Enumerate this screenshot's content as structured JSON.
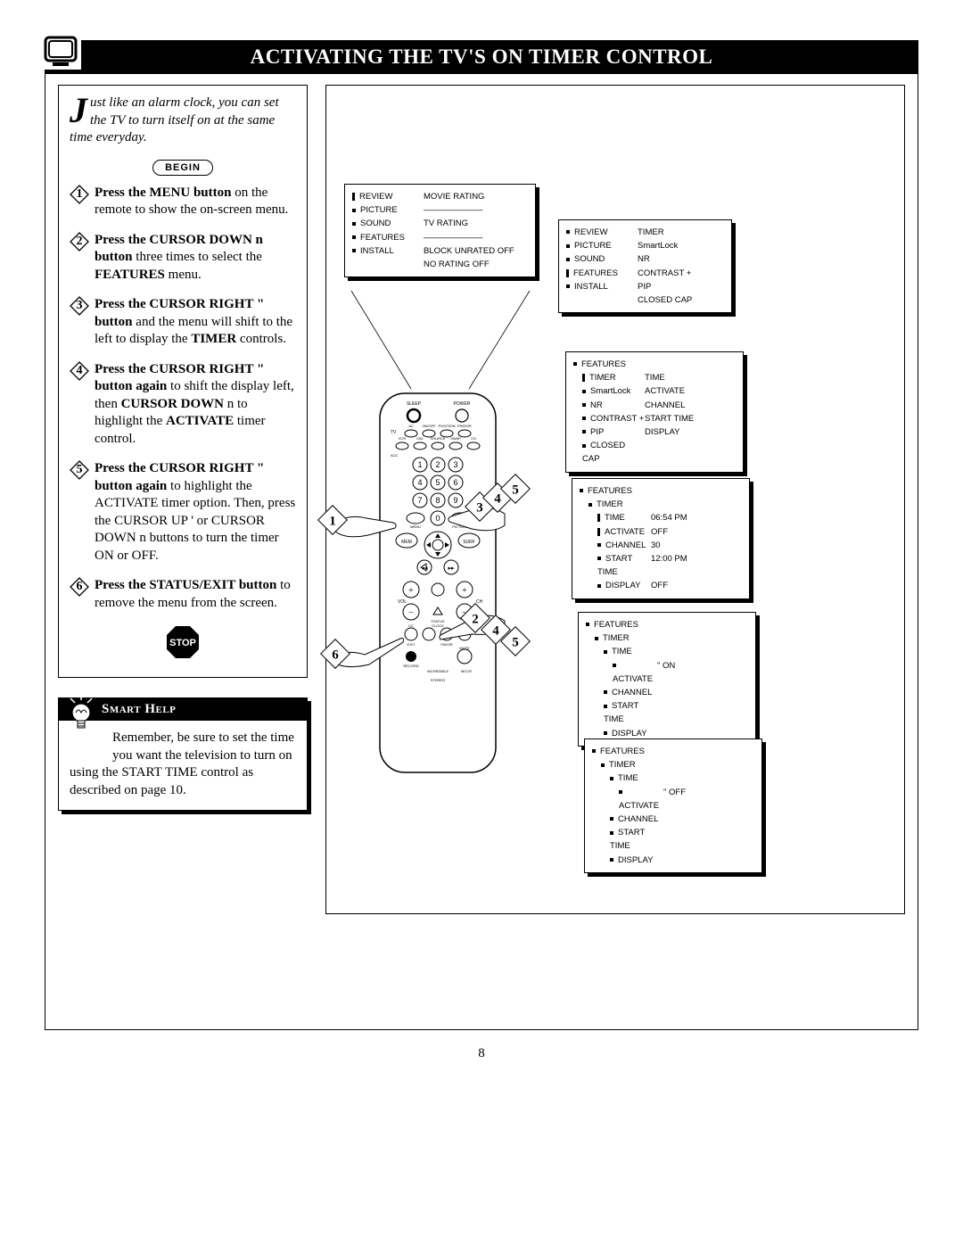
{
  "title": "ACTIVATING THE TV'S ON TIMER CONTROL",
  "page_number": "8",
  "intro_dropcap": "J",
  "intro_text": "ust like an alarm clock, you can set the TV to turn itself on at the same time everyday.",
  "begin": "BEGIN",
  "steps": [
    {
      "n": "1",
      "html": "<b>Press the MENU button</b> on the remote to show the on-screen menu."
    },
    {
      "n": "2",
      "html": "<b>Press the CURSOR DOWN n button</b> three times to select the <b>FEATURES</b> menu."
    },
    {
      "n": "3",
      "html": "<b>Press the CURSOR RIGHT \" button</b> and the menu will shift to the left to display the <b>TIMER</b> controls."
    },
    {
      "n": "4",
      "html": "<b>Press the CURSOR RIGHT \" button again</b> to shift the display left, then <b>CURSOR DOWN</b> n to highlight the <b>ACTIVATE</b> timer control."
    },
    {
      "n": "5",
      "html": "<b>Press the CURSOR RIGHT \" button again</b> to highlight the ACTIVATE timer option. Then, press the CURSOR UP ' or CURSOR DOWN n buttons to turn the timer ON or OFF."
    },
    {
      "n": "6",
      "html": "<b>Press the STATUS/EXIT button</b> to remove the menu from the screen."
    }
  ],
  "stop": "STOP",
  "smart_help_title": "Smart Help",
  "smart_help_body": "Remember, be sure to set the time you want the television to turn on using the START TIME control as described on page 10.",
  "menu1": {
    "left": [
      "REVIEW",
      "PICTURE",
      "SOUND",
      "FEATURES",
      "INSTALL"
    ],
    "right": [
      "MOVIE RATING",
      "———————",
      "TV RATING",
      "———————",
      "BLOCK UNRATED OFF",
      "NO RATING        OFF"
    ]
  },
  "menu2": {
    "left": [
      "REVIEW",
      "PICTURE",
      "SOUND",
      "FEATURES",
      "INSTALL",
      ""
    ],
    "right": [
      "TIMER",
      "SmartLock",
      "NR",
      "CONTRAST +",
      "PIP",
      "CLOSED CAP"
    ]
  },
  "menu3": {
    "left": [
      "FEATURES",
      "TIMER",
      "SmartLock",
      "NR",
      "CONTRAST +",
      "PIP",
      "CLOSED CAP"
    ],
    "right": [
      "",
      "TIME",
      "ACTIVATE",
      "CHANNEL",
      "START TIME",
      "DISPLAY",
      ""
    ]
  },
  "menu4": {
    "left": [
      "FEATURES",
      "TIMER",
      "TIME",
      "ACTIVATE",
      "CHANNEL",
      "START TIME",
      "DISPLAY"
    ],
    "right": [
      "",
      "",
      "06:54 PM",
      "OFF",
      "30",
      "12:00 PM",
      "OFF"
    ]
  },
  "menu5": {
    "left": [
      "FEATURES",
      "TIMER",
      "TIME",
      "ACTIVATE",
      "CHANNEL",
      "START TIME",
      "DISPLAY"
    ],
    "right": [
      "",
      "",
      "",
      "\"   ON",
      "",
      "",
      ""
    ]
  },
  "menu6": {
    "left": [
      "FEATURES",
      "TIMER",
      "TIME",
      "ACTIVATE",
      "CHANNEL",
      "START TIME",
      "DISPLAY"
    ],
    "right": [
      "",
      "",
      "",
      "\"   OFF",
      "",
      "",
      ""
    ]
  },
  "remote_labels": {
    "sleep": "SLEEP",
    "power": "POWER",
    "tv": "TV",
    "ac": "AC",
    "onoff": "ON/OFF",
    "position": "POSITION",
    "freeze": "FREEZE",
    "vcr": "VCR",
    "cbl": "CBL",
    "source": "SOURCE",
    "swap": "SWAP",
    "ch": "CH",
    "acc": "ACC",
    "menu": "MENU",
    "picture": "PICTURE",
    "mem": "MEM",
    "surf": "SURF",
    "vol": "VOL",
    "chlbl": "CH",
    "status": "STATUS",
    "cc": "CC",
    "clock": "CLOCK",
    "favor": "FAVOR",
    "exit": "EXIT",
    "mute": "MUTE",
    "record": "RECORD",
    "incredible": "INCREDIBLE",
    "mccr": "MCCR",
    "stereo": "STEREO"
  },
  "callouts": [
    "1",
    "2",
    "3",
    "4",
    "5",
    "6"
  ]
}
